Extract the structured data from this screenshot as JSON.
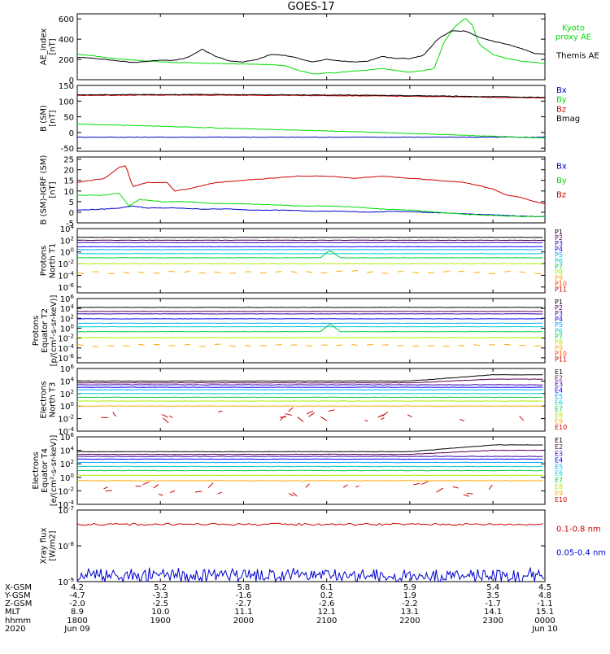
{
  "title": "GOES-17",
  "chart_data": [
    {
      "type": "line",
      "ylabel": [
        "AE_index",
        "[nT]"
      ],
      "ylim": [
        0,
        650
      ],
      "yticks": [
        "0",
        "200",
        "400",
        "600"
      ],
      "series": [
        {
          "name": "Kyoto proxy AE",
          "legend": [
            "Kyoto",
            "proxy AE"
          ],
          "color": "#00dd00",
          "t": [
            0,
            20,
            40,
            60,
            80,
            100,
            140,
            200,
            240,
            270,
            300,
            320,
            340,
            350,
            360,
            370,
            385,
            410,
            440,
            460,
            480,
            500,
            515,
            530,
            545,
            560,
            570,
            580,
            600,
            620,
            640,
            660,
            675
          ],
          "values": [
            250,
            240,
            220,
            205,
            195,
            185,
            170,
            160,
            155,
            150,
            140,
            90,
            60,
            55,
            70,
            65,
            80,
            90,
            110,
            90,
            75,
            90,
            110,
            380,
            520,
            610,
            540,
            350,
            250,
            210,
            185,
            170,
            160
          ]
        },
        {
          "name": "Themis AE",
          "legend": [
            "Themis AE"
          ],
          "color": "#000000",
          "t": [
            0,
            20,
            40,
            60,
            80,
            100,
            120,
            140,
            160,
            180,
            200,
            220,
            240,
            260,
            280,
            300,
            320,
            340,
            360,
            380,
            400,
            420,
            440,
            460,
            480,
            500,
            520,
            540,
            560,
            580,
            600,
            620,
            640,
            660,
            675
          ],
          "values": [
            220,
            215,
            200,
            185,
            170,
            180,
            195,
            190,
            220,
            300,
            230,
            185,
            175,
            200,
            250,
            240,
            210,
            175,
            200,
            185,
            175,
            185,
            230,
            210,
            210,
            240,
            400,
            480,
            480,
            420,
            380,
            350,
            310,
            260,
            250
          ]
        }
      ]
    },
    {
      "type": "line",
      "ylabel": [
        "B (SM)",
        "[nT]"
      ],
      "ylim": [
        -60,
        150
      ],
      "yticks": [
        "-50",
        "0",
        "50",
        "100",
        "150"
      ],
      "series": [
        {
          "name": "Bx",
          "legend": [
            "Bx"
          ],
          "color": "#0000cc",
          "t": [
            0,
            675
          ],
          "values": [
            -15,
            -15
          ]
        },
        {
          "name": "By",
          "legend": [
            "By"
          ],
          "color": "#00dd00",
          "t": [
            0,
            120,
            240,
            360,
            480,
            600,
            675
          ],
          "values": [
            27,
            20,
            12,
            5,
            -3,
            -12,
            -18
          ]
        },
        {
          "name": "Bz",
          "legend": [
            "Bz"
          ],
          "color": "#cc0000",
          "t": [
            0,
            100,
            200,
            300,
            400,
            500,
            600,
            675
          ],
          "values": [
            118,
            119,
            119,
            118,
            117,
            115,
            112,
            110
          ]
        },
        {
          "name": "Bmag",
          "legend": [
            "Bmag"
          ],
          "color": "#000000",
          "t": [
            0,
            100,
            200,
            300,
            400,
            500,
            600,
            675
          ],
          "values": [
            120,
            121,
            121,
            120,
            119,
            117,
            114,
            112
          ]
        }
      ]
    },
    {
      "type": "line",
      "ylabel": [
        "B (SM)-IGRF (SM)",
        "[nT]"
      ],
      "ylim": [
        -5,
        26
      ],
      "yticks": [
        "-5",
        "0",
        "5",
        "10",
        "15",
        "20",
        "25"
      ],
      "series": [
        {
          "name": "Bx",
          "legend": [
            "Bx"
          ],
          "color": "#0000cc",
          "t": [
            0,
            40,
            60,
            80,
            100,
            140,
            180,
            220,
            260,
            300,
            340,
            380,
            420,
            460,
            500,
            540,
            580,
            620,
            660,
            675
          ],
          "values": [
            1,
            1.5,
            2,
            3,
            2,
            2,
            1.5,
            1.5,
            1,
            1,
            0.5,
            0.5,
            0,
            0.5,
            0,
            -0.5,
            -1,
            -1.5,
            -2,
            -2
          ]
        },
        {
          "name": "By",
          "legend": [
            "By"
          ],
          "color": "#00dd00",
          "t": [
            0,
            40,
            60,
            75,
            90,
            120,
            160,
            200,
            240,
            280,
            320,
            360,
            400,
            440,
            480,
            520,
            560,
            600,
            640,
            675
          ],
          "values": [
            8,
            8,
            9,
            3,
            6,
            5,
            5,
            4,
            4,
            3.5,
            3,
            3,
            2.5,
            1.5,
            1,
            0,
            -1,
            -1.5,
            -2,
            -2
          ]
        },
        {
          "name": "Bz",
          "legend": [
            "Bz"
          ],
          "color": "#cc0000",
          "t": [
            0,
            20,
            40,
            60,
            70,
            80,
            100,
            130,
            140,
            160,
            200,
            240,
            280,
            320,
            360,
            400,
            440,
            480,
            520,
            560,
            600,
            620,
            640,
            660,
            675
          ],
          "values": [
            14,
            15,
            16,
            21,
            22,
            12,
            14,
            14,
            10,
            11,
            14,
            15,
            16,
            17,
            17,
            16,
            17,
            16,
            15,
            14,
            11,
            8,
            7,
            5,
            4
          ]
        }
      ]
    },
    {
      "type": "line",
      "log_scale": true,
      "ylabel": [
        "Protons",
        "North T1"
      ],
      "ylim": [
        -7,
        4
      ],
      "yticks": [
        "10^4",
        "10^2",
        "10^0",
        "10^-2",
        "10^-4",
        "10^-6"
      ],
      "spike_t": 365,
      "series": [
        {
          "name": "P1",
          "color": "#000000",
          "log10": 2.5
        },
        {
          "name": "P2",
          "color": "#550055",
          "log10": 2.0
        },
        {
          "name": "P3",
          "color": "#3300aa",
          "log10": 1.6
        },
        {
          "name": "P4",
          "color": "#0000ff",
          "log10": 0.9
        },
        {
          "name": "P5",
          "color": "#00aaff",
          "log10": 0.4
        },
        {
          "name": "P6",
          "color": "#00cccc",
          "log10": -0.3
        },
        {
          "name": "P7",
          "color": "#00cc44",
          "log10": -1.0,
          "spike": 1.3
        },
        {
          "name": "P8",
          "color": "#aaee00",
          "log10": -2.0
        },
        {
          "name": "P9",
          "color": "#ffaa00",
          "log10": -3.5,
          "dashed": true
        },
        {
          "name": "P10",
          "color": "#ff4400",
          "log10": null
        },
        {
          "name": "P11",
          "color": "#cc0000",
          "log10": null
        }
      ]
    },
    {
      "type": "line",
      "log_scale": true,
      "ylabel": [
        "Protons",
        "Equator T2",
        "[p/(cm²-s-sr-keV)]"
      ],
      "ylim": [
        -7,
        6
      ],
      "yticks": [
        "10^6",
        "10^4",
        "10^2",
        "10^0",
        "10^-2",
        "10^-4",
        "10^-6"
      ],
      "spike_t": 365,
      "series": [
        {
          "name": "P1",
          "color": "#000000",
          "log10": 4.2
        },
        {
          "name": "P2",
          "color": "#550055",
          "log10": 3.4
        },
        {
          "name": "P3",
          "color": "#3300aa",
          "log10": 2.9
        },
        {
          "name": "P4",
          "color": "#0000ff",
          "log10": 1.9
        },
        {
          "name": "P5",
          "color": "#00aaff",
          "log10": 1.0
        },
        {
          "name": "P6",
          "color": "#00cccc",
          "log10": 0.3
        },
        {
          "name": "P7",
          "color": "#00cc44",
          "log10": -0.7,
          "spike": 1.6
        },
        {
          "name": "P8",
          "color": "#aaee00",
          "log10": -1.9
        },
        {
          "name": "P9",
          "color": "#ffaa00",
          "log10": -3.5,
          "dashed": true
        },
        {
          "name": "P10",
          "color": "#ff4400",
          "log10": null
        },
        {
          "name": "P11",
          "color": "#cc0000",
          "log10": null
        }
      ]
    },
    {
      "type": "line",
      "log_scale": true,
      "ylabel": [
        "Electrons",
        "North T3"
      ],
      "ylim": [
        -4,
        6
      ],
      "yticks": [
        "10^6",
        "10^4",
        "10^2",
        "10^0",
        "10^-2",
        "10^-4"
      ],
      "series": [
        {
          "name": "E1",
          "color": "#000000",
          "log10": 4.0,
          "rise": 1.0
        },
        {
          "name": "E2",
          "color": "#550055",
          "log10": 3.7,
          "rise": 0.6
        },
        {
          "name": "E3",
          "color": "#3300aa",
          "log10": 3.4
        },
        {
          "name": "E4",
          "color": "#0000ff",
          "log10": 3.0
        },
        {
          "name": "E5",
          "color": "#00aaff",
          "log10": 2.6
        },
        {
          "name": "E6",
          "color": "#00cccc",
          "log10": 2.0
        },
        {
          "name": "E7",
          "color": "#00cc44",
          "log10": 1.4
        },
        {
          "name": "E8",
          "color": "#aaee00",
          "log10": 0.8
        },
        {
          "name": "E9",
          "color": "#ffaa00",
          "log10": 0.0
        },
        {
          "name": "E10",
          "color": "#cc0000",
          "log10": -1.6,
          "scattered": true
        }
      ]
    },
    {
      "type": "line",
      "log_scale": true,
      "ylabel": [
        "Electrons",
        "Equator T4",
        "[e/(cm²-s-sr-keV)]"
      ],
      "ylim": [
        -4,
        6
      ],
      "yticks": [
        "10^6",
        "10^4",
        "10^2",
        "10^0",
        "10^-2",
        "10^-4"
      ],
      "series": [
        {
          "name": "E1",
          "color": "#000000",
          "log10": 3.8,
          "rise": 1.0
        },
        {
          "name": "E2",
          "color": "#550055",
          "log10": 3.4,
          "rise": 0.6
        },
        {
          "name": "E3",
          "color": "#3300aa",
          "log10": 3.1
        },
        {
          "name": "E4",
          "color": "#0000ff",
          "log10": 2.7
        },
        {
          "name": "E5",
          "color": "#00aaff",
          "log10": 2.2
        },
        {
          "name": "E6",
          "color": "#00cccc",
          "log10": 1.6
        },
        {
          "name": "E7",
          "color": "#00cc44",
          "log10": 1.0
        },
        {
          "name": "E8",
          "color": "#aaee00",
          "log10": 0.3
        },
        {
          "name": "E9",
          "color": "#ffaa00",
          "log10": -0.5
        },
        {
          "name": "E10",
          "color": "#cc0000",
          "log10": -1.8,
          "scattered": true
        }
      ]
    },
    {
      "type": "line",
      "log_scale": true,
      "ylabel": [
        "Xray flux",
        "[W/m2]"
      ],
      "ylim": [
        -9,
        -7
      ],
      "yticks": [
        "10^-7",
        "10^-8",
        "10^-9"
      ],
      "series": [
        {
          "name": "0.1-0.8 nm",
          "legend": [
            "0.1-0.8 nm"
          ],
          "color": "#cc0000",
          "log10": -7.4
        },
        {
          "name": "0.05-0.4 nm",
          "legend": [
            "0.05-0.4 nm"
          ],
          "color": "#0000cc",
          "log10": -8.82,
          "noisy": true
        }
      ]
    }
  ],
  "x_axis": {
    "range_minutes": [
      0,
      675
    ],
    "tick_minutes": [
      0,
      120,
      240,
      360,
      480,
      600,
      675
    ],
    "row_labels": [
      "X-GSM",
      "Y-GSM",
      "Z-GSM",
      "MLT",
      "hhmm",
      "2020"
    ],
    "columns": [
      [
        "4.2",
        "-4.7",
        "-2.0",
        "8.9",
        "1800",
        "Jun 09"
      ],
      [
        "5.2",
        "-3.3",
        "-2.5",
        "10.0",
        "1900",
        ""
      ],
      [
        "5.8",
        "-1.6",
        "-2.7",
        "11.1",
        "2000",
        ""
      ],
      [
        "6.1",
        "0.2",
        "-2.6",
        "12.1",
        "2100",
        ""
      ],
      [
        "5.9",
        "1.9",
        "-2.2",
        "13.1",
        "2200",
        ""
      ],
      [
        "5.4",
        "3.5",
        "-1.7",
        "14.1",
        "2300",
        ""
      ],
      [
        "4.5",
        "4.8",
        "-1.1",
        "15.1",
        "0000",
        "Jun 10"
      ]
    ]
  }
}
